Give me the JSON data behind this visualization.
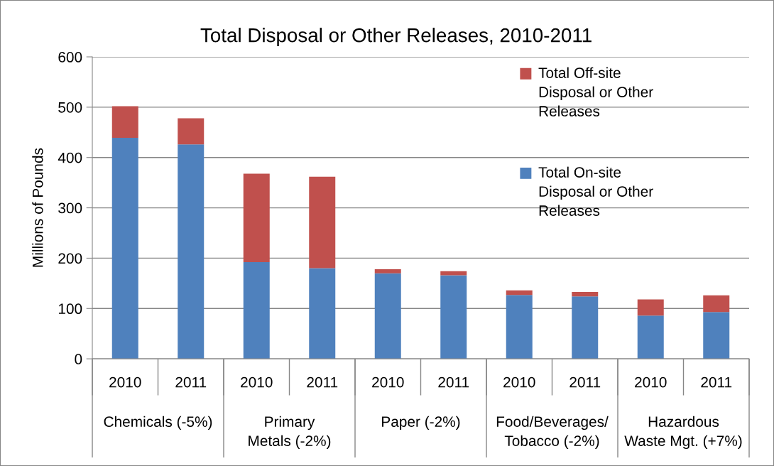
{
  "chart_data": {
    "type": "bar",
    "title": "Total Disposal or Other Releases, 2010-2011",
    "ylabel": "Millions of Pounds",
    "categories": [
      "2010",
      "2011",
      "2010",
      "2011",
      "2010",
      "2011",
      "2010",
      "2011",
      "2010",
      "2011"
    ],
    "annotations": [
      "Chemicals (-5%)",
      "Primary\nMetals (-2%)",
      "Paper (-2%)",
      "Food/Beverages/\nTobacco (-2%)",
      "Hazardous\nWaste Mgt. (+7%)"
    ],
    "stacked": true,
    "series": [
      {
        "name": "Total On-site\nDisposal or Other\nReleases",
        "color": "#4f81bd",
        "values": [
          439,
          426,
          192,
          180,
          170,
          166,
          127,
          124,
          86,
          93
        ]
      },
      {
        "name": "Total Off-site\nDisposal or Other\nReleases",
        "color": "#c0504d",
        "values": [
          63,
          52,
          176,
          182,
          8,
          8,
          9,
          9,
          32,
          33
        ]
      }
    ],
    "ylim": [
      0,
      600
    ],
    "yticks": [
      0,
      100,
      200,
      300,
      400,
      500,
      600
    ],
    "grid": "y",
    "legend": "top right"
  }
}
